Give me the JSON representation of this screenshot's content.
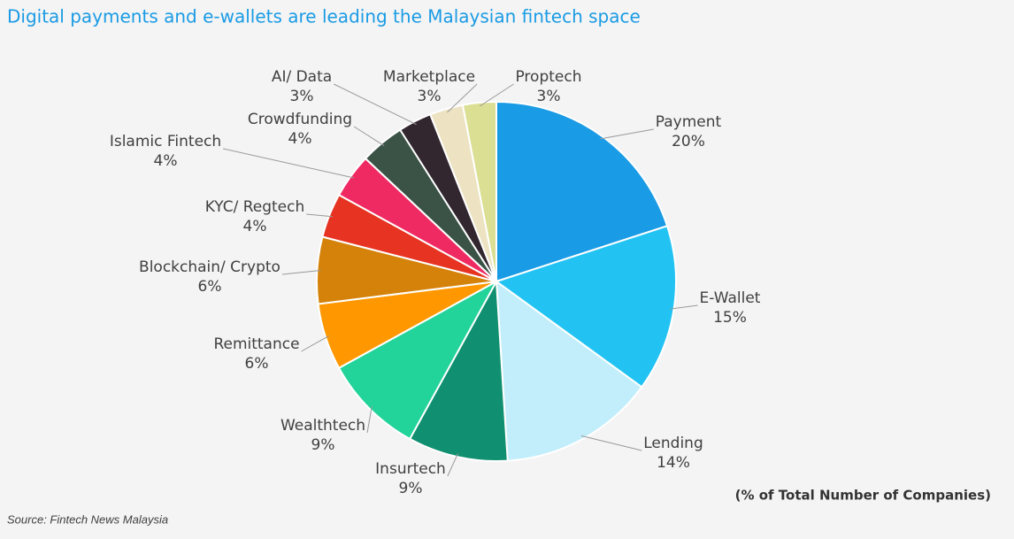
{
  "chart_data": {
    "type": "pie",
    "title": "Digital payments and e-wallets are leading the Malaysian fintech space",
    "note": "(% of Total Number of Companies)",
    "source": "Source: Fintech News Malaysia",
    "categories": [
      "Payment",
      "E-Wallet",
      "Lending",
      "Insurtech",
      "Wealthtech",
      "Remittance",
      "Blockchain/ Crypto",
      "KYC/ Regtech",
      "Islamic Fintech",
      "Crowdfunding",
      "AI/ Data",
      "Marketplace",
      "Proptech"
    ],
    "values": [
      20,
      15,
      14,
      9,
      9,
      6,
      6,
      4,
      4,
      4,
      3,
      3,
      3
    ],
    "value_labels": [
      "20%",
      "15%",
      "14%",
      "9%",
      "9%",
      "6%",
      "6%",
      "4%",
      "4%",
      "4%",
      "3%",
      "3%",
      "3%"
    ],
    "colors": [
      "#1a9be5",
      "#22c3f3",
      "#c2eefb",
      "#109070",
      "#22d39a",
      "#ff9800",
      "#d4820a",
      "#e63322",
      "#ef2a63",
      "#3a5346",
      "#32262f",
      "#ede3c3",
      "#dbdf94"
    ]
  }
}
